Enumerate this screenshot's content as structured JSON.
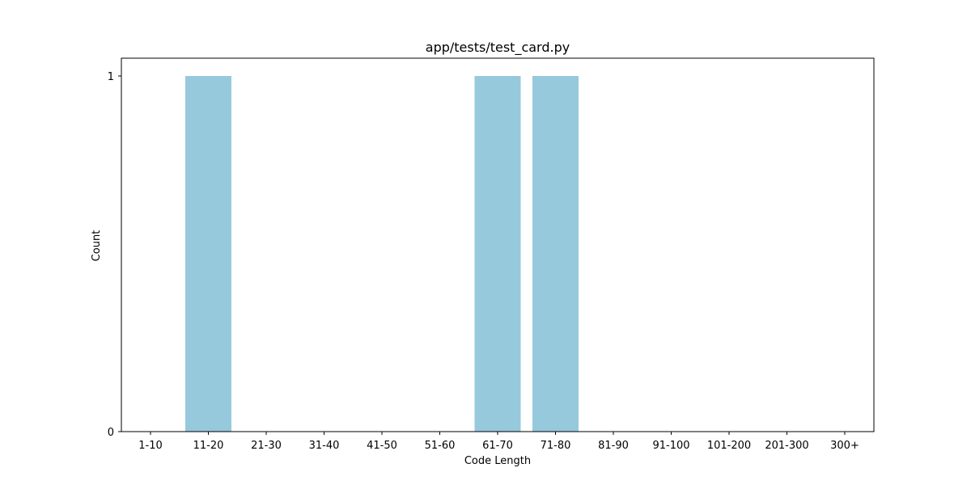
{
  "chart_data": {
    "type": "bar",
    "title": "app/tests/test_card.py",
    "xlabel": "Code Length",
    "ylabel": "Count",
    "categories": [
      "1-10",
      "11-20",
      "21-30",
      "31-40",
      "41-50",
      "51-60",
      "61-70",
      "71-80",
      "81-90",
      "91-100",
      "101-200",
      "201-300",
      "300+"
    ],
    "values": [
      0,
      1,
      0,
      0,
      0,
      0,
      1,
      1,
      0,
      0,
      0,
      0,
      0
    ],
    "ylim": [
      0,
      1
    ],
    "yticks": [
      "0",
      "1"
    ],
    "bar_color": "#96c9dc",
    "grid": false,
    "legend": null
  }
}
